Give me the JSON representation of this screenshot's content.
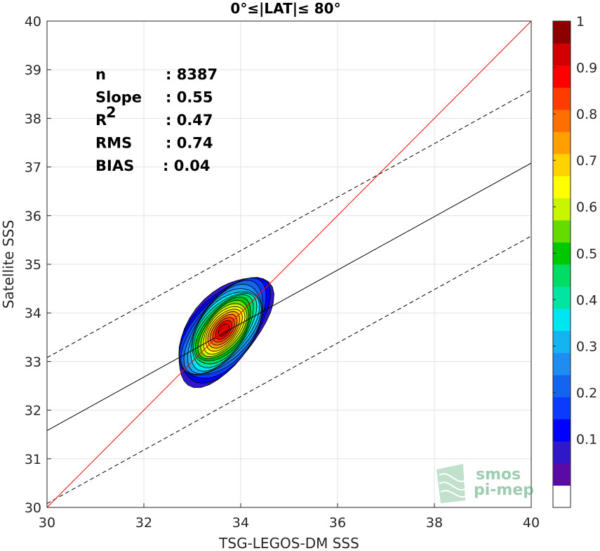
{
  "chart_data": {
    "type": "contour",
    "title": "0°≤|LAT|≤ 80°",
    "xlabel": "TSG-LEGOS-DM SSS",
    "ylabel": "Satellite SSS",
    "xlim": [
      30,
      40
    ],
    "ylim": [
      30,
      40
    ],
    "xticks": [
      "30",
      "32",
      "34",
      "36",
      "38",
      "40"
    ],
    "yticks": [
      "30",
      "31",
      "32",
      "33",
      "34",
      "35",
      "36",
      "37",
      "38",
      "39",
      "40"
    ],
    "grid": true,
    "stats": [
      {
        "label": "n",
        "value": ": 8387"
      },
      {
        "label": "Slope",
        "value": ": 0.55"
      },
      {
        "label": "R",
        "sup": "2",
        "value": ": 0.47"
      },
      {
        "label": "RMS",
        "value": ": 0.74"
      },
      {
        "label": "BIAS",
        "value": ": 0.04"
      }
    ],
    "lines": {
      "identity": {
        "slope": 1,
        "intercept": 0,
        "color": "#ff0000"
      },
      "fit": {
        "slope": 0.55,
        "intercept": 15.08,
        "color": "#000000"
      },
      "upper_band": {
        "slope": 0.55,
        "intercept": 16.58,
        "style": "dashed"
      },
      "lower_band": {
        "slope": 0.55,
        "intercept": 13.58,
        "style": "dashed"
      }
    },
    "density_center": {
      "x": 33.65,
      "y": 33.65
    },
    "contour_levels": [
      0.05,
      0.1,
      0.15,
      0.2,
      0.25,
      0.3,
      0.35,
      0.4,
      0.45,
      0.5,
      0.55,
      0.6,
      0.65,
      0.7,
      0.75,
      0.8,
      0.85,
      0.9,
      0.95,
      1.0
    ],
    "colorbar": {
      "ticks": [
        "0.1",
        "0.2",
        "0.3",
        "0.4",
        "0.5",
        "0.6",
        "0.7",
        "0.8",
        "0.9",
        "1"
      ],
      "colors": [
        "#ffffff",
        "#5a0aa5",
        "#3018c8",
        "#0000ff",
        "#0a3cff",
        "#1464f0",
        "#1e8cf0",
        "#14b4f0",
        "#00e6f0",
        "#00e6a0",
        "#00dc64",
        "#00c800",
        "#64dc00",
        "#c8f500",
        "#ffff00",
        "#ffd200",
        "#ffa000",
        "#ff6e00",
        "#ff3c00",
        "#ff0000",
        "#d20000",
        "#8c0000"
      ]
    }
  },
  "logo": {
    "line1": "smos",
    "line2": "pi-mep"
  }
}
